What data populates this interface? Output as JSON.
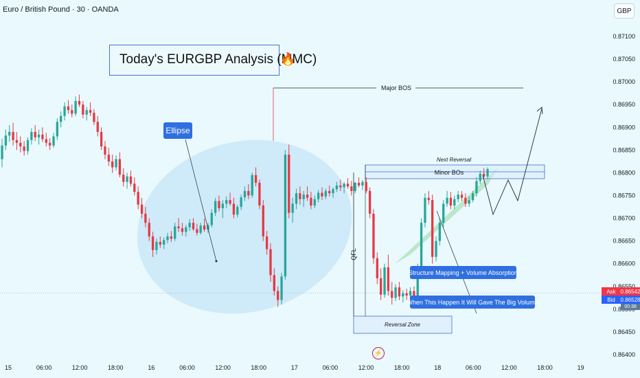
{
  "header": {
    "symbol": "Euro / British Pound · 30 · OANDA",
    "currency_button": "GBP"
  },
  "annotations": {
    "title": "Today's EURGBP Analysis (MMC)",
    "ellipse_label": "Ellipse",
    "major_bos": "Major BOS",
    "next_reversal": "Next Reversal",
    "minor_bos": "Minor BOs",
    "qfl": "QFL",
    "reversal_zone": "Reversal Zone",
    "structure_note": "Structure Mapping + Volume Absorption",
    "volume_note": "When This Happen It Will Gave The Big Volume"
  },
  "quotes": {
    "ask_label": "Ask",
    "ask_value": "0.86542",
    "bid_label": "Bid",
    "bid_value": "0.86528",
    "extra_value": "00:38"
  },
  "chart_data": {
    "type": "candlestick",
    "instrument": "Euro / British Pound",
    "timeframe": "30",
    "source": "OANDA",
    "y_ticks": [
      "0.87100",
      "0.87050",
      "0.87000",
      "0.86950",
      "0.86900",
      "0.86850",
      "0.86800",
      "0.86750",
      "0.86700",
      "0.86650",
      "0.86600",
      "0.86550",
      "0.86500",
      "0.86450",
      "0.86400"
    ],
    "ylim": [
      0.86395,
      0.87125
    ],
    "x_ticks": [
      "15",
      "06:00",
      "12:00",
      "18:00",
      "16",
      "06:00",
      "12:00",
      "18:00",
      "17",
      "06:00",
      "12:00",
      "18:00",
      "18",
      "06:00",
      "12:00",
      "18:00",
      "19"
    ],
    "ohlc": [
      [
        0.8683,
        0.86875,
        0.86812,
        0.8686
      ],
      [
        0.8686,
        0.86895,
        0.8685,
        0.86882
      ],
      [
        0.86882,
        0.86905,
        0.86868,
        0.8689
      ],
      [
        0.8689,
        0.8691,
        0.8686,
        0.86872
      ],
      [
        0.86872,
        0.8689,
        0.8685,
        0.86866
      ],
      [
        0.86866,
        0.8688,
        0.86845,
        0.86858
      ],
      [
        0.86858,
        0.8687,
        0.86838,
        0.86848
      ],
      [
        0.86848,
        0.86878,
        0.8684,
        0.86872
      ],
      [
        0.86872,
        0.86898,
        0.86862,
        0.8689
      ],
      [
        0.8689,
        0.86905,
        0.8687,
        0.86878
      ],
      [
        0.86878,
        0.86895,
        0.86862,
        0.86884
      ],
      [
        0.86884,
        0.869,
        0.86868,
        0.86874
      ],
      [
        0.86874,
        0.86888,
        0.86858,
        0.86866
      ],
      [
        0.86866,
        0.86876,
        0.8685,
        0.8686
      ],
      [
        0.8686,
        0.86888,
        0.86855,
        0.8688
      ],
      [
        0.8688,
        0.8692,
        0.86872,
        0.86912
      ],
      [
        0.86912,
        0.86935,
        0.869,
        0.86925
      ],
      [
        0.86925,
        0.86955,
        0.86915,
        0.86946
      ],
      [
        0.86946,
        0.8696,
        0.8693,
        0.86938
      ],
      [
        0.86938,
        0.8695,
        0.86922,
        0.8693
      ],
      [
        0.8693,
        0.86968,
        0.86925,
        0.86958
      ],
      [
        0.86958,
        0.86972,
        0.86945,
        0.8695
      ],
      [
        0.8695,
        0.86958,
        0.8692,
        0.86928
      ],
      [
        0.86928,
        0.86945,
        0.86915,
        0.86938
      ],
      [
        0.86938,
        0.86955,
        0.86925,
        0.86932
      ],
      [
        0.86932,
        0.8694,
        0.86905,
        0.86912
      ],
      [
        0.86912,
        0.86925,
        0.8688,
        0.8689
      ],
      [
        0.8689,
        0.869,
        0.8685,
        0.86858
      ],
      [
        0.86858,
        0.8687,
        0.8683,
        0.8684
      ],
      [
        0.8684,
        0.86855,
        0.86815,
        0.86825
      ],
      [
        0.86825,
        0.8684,
        0.868,
        0.86812
      ],
      [
        0.86812,
        0.86838,
        0.86805,
        0.8683
      ],
      [
        0.8683,
        0.86845,
        0.8679,
        0.86796
      ],
      [
        0.86796,
        0.8681,
        0.8677,
        0.8678
      ],
      [
        0.8678,
        0.868,
        0.86765,
        0.86792
      ],
      [
        0.86792,
        0.86805,
        0.8677,
        0.86776
      ],
      [
        0.86776,
        0.8679,
        0.8675,
        0.86758
      ],
      [
        0.86758,
        0.8677,
        0.8672,
        0.8673
      ],
      [
        0.8673,
        0.86745,
        0.867,
        0.8671
      ],
      [
        0.8671,
        0.86725,
        0.8668,
        0.8669
      ],
      [
        0.8669,
        0.867,
        0.8665,
        0.8666
      ],
      [
        0.8666,
        0.8667,
        0.86615,
        0.8663
      ],
      [
        0.8663,
        0.86655,
        0.8662,
        0.86648
      ],
      [
        0.86648,
        0.8666,
        0.86635,
        0.86642
      ],
      [
        0.86642,
        0.86658,
        0.86632,
        0.86652
      ],
      [
        0.86652,
        0.86668,
        0.86645,
        0.8666
      ],
      [
        0.8666,
        0.86672,
        0.86648,
        0.86655
      ],
      [
        0.86655,
        0.8669,
        0.8665,
        0.86682
      ],
      [
        0.86682,
        0.867,
        0.8667,
        0.86678
      ],
      [
        0.86678,
        0.8669,
        0.86662,
        0.8667
      ],
      [
        0.8667,
        0.86685,
        0.8666,
        0.8668
      ],
      [
        0.8668,
        0.86698,
        0.86672,
        0.8669
      ],
      [
        0.8669,
        0.867,
        0.86672,
        0.86676
      ],
      [
        0.86676,
        0.86688,
        0.86662,
        0.86668
      ],
      [
        0.86668,
        0.8669,
        0.86664,
        0.86684
      ],
      [
        0.86684,
        0.867,
        0.8667,
        0.86675
      ],
      [
        0.86675,
        0.8669,
        0.86668,
        0.86685
      ],
      [
        0.86685,
        0.8672,
        0.8668,
        0.86712
      ],
      [
        0.86712,
        0.86745,
        0.86705,
        0.86738
      ],
      [
        0.86738,
        0.8675,
        0.86715,
        0.86722
      ],
      [
        0.86722,
        0.8674,
        0.867,
        0.86732
      ],
      [
        0.86732,
        0.86748,
        0.86722,
        0.8674
      ],
      [
        0.8674,
        0.86756,
        0.86728,
        0.86732
      ],
      [
        0.86732,
        0.86745,
        0.867,
        0.86708
      ],
      [
        0.86708,
        0.8673,
        0.86702,
        0.86725
      ],
      [
        0.86725,
        0.86752,
        0.86718,
        0.86746
      ],
      [
        0.86746,
        0.8677,
        0.86738,
        0.8676
      ],
      [
        0.8676,
        0.86775,
        0.86742,
        0.8675
      ],
      [
        0.8675,
        0.868,
        0.86745,
        0.86795
      ],
      [
        0.86795,
        0.86812,
        0.8677,
        0.86778
      ],
      [
        0.86778,
        0.86785,
        0.8672,
        0.86728
      ],
      [
        0.86728,
        0.8674,
        0.8665,
        0.8666
      ],
      [
        0.8666,
        0.86672,
        0.8662,
        0.86632
      ],
      [
        0.86632,
        0.86645,
        0.8656,
        0.86575
      ],
      [
        0.86575,
        0.8659,
        0.8653,
        0.8654
      ],
      [
        0.8654,
        0.8655,
        0.86505,
        0.8652
      ],
      [
        0.8652,
        0.8658,
        0.8651,
        0.86572
      ],
      [
        0.86572,
        0.8685,
        0.86565,
        0.8684
      ],
      [
        0.8684,
        0.86862,
        0.867,
        0.86712
      ],
      [
        0.86712,
        0.86745,
        0.8669,
        0.86732
      ],
      [
        0.86732,
        0.86765,
        0.8672,
        0.86755
      ],
      [
        0.86755,
        0.8677,
        0.8673,
        0.86742
      ],
      [
        0.86742,
        0.8676,
        0.86725,
        0.86752
      ],
      [
        0.86752,
        0.8677,
        0.86738,
        0.86745
      ],
      [
        0.86745,
        0.86758,
        0.8672,
        0.86728
      ],
      [
        0.86728,
        0.8675,
        0.86722,
        0.86742
      ],
      [
        0.86742,
        0.86762,
        0.86735,
        0.86756
      ],
      [
        0.86756,
        0.86768,
        0.8674,
        0.86748
      ],
      [
        0.86748,
        0.86765,
        0.86742,
        0.8676
      ],
      [
        0.8676,
        0.86772,
        0.86748,
        0.86755
      ],
      [
        0.86755,
        0.86768,
        0.86745,
        0.86764
      ],
      [
        0.86764,
        0.8678,
        0.86758,
        0.86772
      ],
      [
        0.86772,
        0.86785,
        0.8676,
        0.86768
      ],
      [
        0.86768,
        0.8678,
        0.86755,
        0.86776
      ],
      [
        0.86776,
        0.86788,
        0.86765,
        0.8677
      ],
      [
        0.8677,
        0.86782,
        0.8675,
        0.8676
      ],
      [
        0.8676,
        0.8678,
        0.86755,
        0.86778
      ],
      [
        0.86778,
        0.8679,
        0.86768,
        0.86772
      ],
      [
        0.86772,
        0.86784,
        0.86762,
        0.8678
      ],
      [
        0.8678,
        0.8679,
        0.86755,
        0.8676
      ],
      [
        0.8676,
        0.86768,
        0.867,
        0.8671
      ],
      [
        0.8671,
        0.8672,
        0.866,
        0.86612
      ],
      [
        0.86612,
        0.86625,
        0.86555,
        0.86568
      ],
      [
        0.86568,
        0.8659,
        0.8652,
        0.86532
      ],
      [
        0.86532,
        0.866,
        0.86525,
        0.86592
      ],
      [
        0.86592,
        0.8662,
        0.8653,
        0.8654
      ],
      [
        0.8654,
        0.8656,
        0.8651,
        0.86525
      ],
      [
        0.86525,
        0.86555,
        0.86518,
        0.86548
      ],
      [
        0.86548,
        0.8656,
        0.8652,
        0.86528
      ],
      [
        0.86528,
        0.86542,
        0.86515,
        0.86535
      ],
      [
        0.86535,
        0.86545,
        0.8652,
        0.8653
      ],
      [
        0.8653,
        0.86548,
        0.86522,
        0.8654
      ],
      [
        0.8654,
        0.8655,
        0.86525,
        0.86528
      ],
      [
        0.86528,
        0.866,
        0.86525,
        0.86595
      ],
      [
        0.86595,
        0.867,
        0.86588,
        0.8669
      ],
      [
        0.8669,
        0.86755,
        0.8668,
        0.86745
      ],
      [
        0.86745,
        0.8676,
        0.8673,
        0.8674
      ],
      [
        0.8674,
        0.86752,
        0.866,
        0.86615
      ],
      [
        0.86615,
        0.8666,
        0.86605,
        0.8665
      ],
      [
        0.8665,
        0.867,
        0.8664,
        0.8669
      ],
      [
        0.8669,
        0.8674,
        0.8668,
        0.86732
      ],
      [
        0.86732,
        0.8676,
        0.86725,
        0.86745
      ],
      [
        0.86745,
        0.86758,
        0.8672,
        0.86728
      ],
      [
        0.86728,
        0.8675,
        0.8672,
        0.86742
      ],
      [
        0.86742,
        0.8676,
        0.86735,
        0.86752
      ],
      [
        0.86752,
        0.8676,
        0.86738,
        0.86745
      ],
      [
        0.86745,
        0.86755,
        0.86725,
        0.86732
      ],
      [
        0.86732,
        0.86748,
        0.86725,
        0.8674
      ],
      [
        0.8674,
        0.8676,
        0.86735,
        0.86755
      ],
      [
        0.86755,
        0.8679,
        0.86748,
        0.86782
      ],
      [
        0.86782,
        0.86805,
        0.86775,
        0.86798
      ],
      [
        0.86798,
        0.8681,
        0.86785,
        0.86792
      ],
      [
        0.86792,
        0.86812,
        0.86786,
        0.86808
      ]
    ]
  }
}
